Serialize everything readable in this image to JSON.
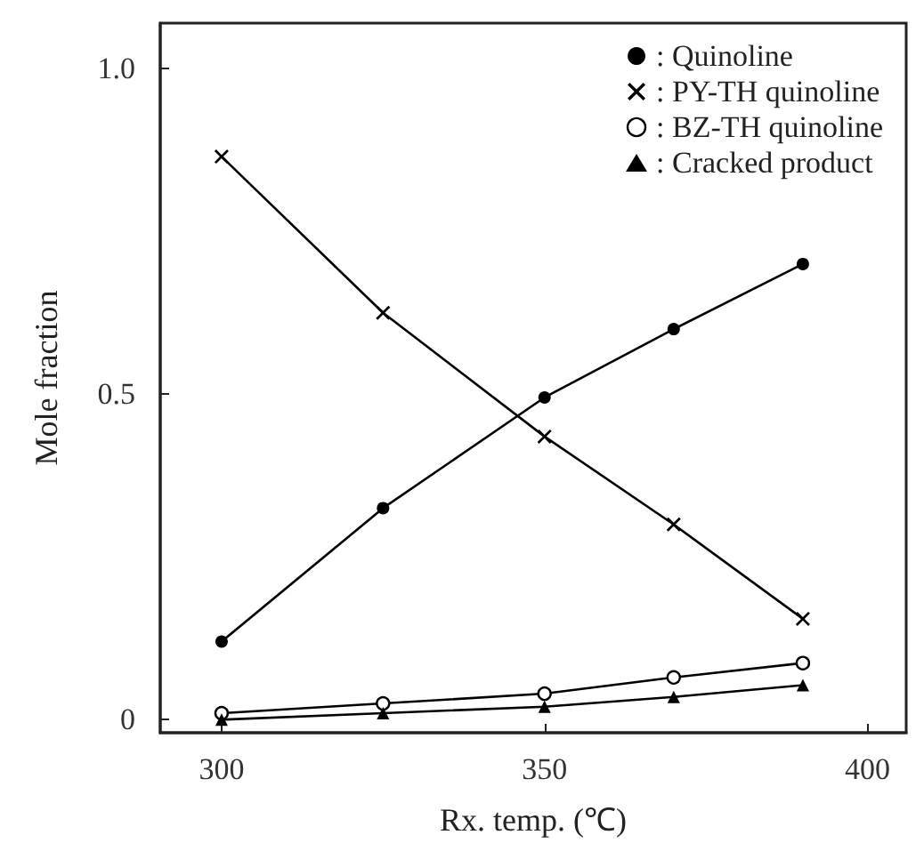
{
  "chart_data": {
    "type": "line",
    "xlabel": "Rx. temp. (℃)",
    "ylabel": "Mole fraction",
    "x": [
      300,
      325,
      350,
      370,
      390
    ],
    "series": [
      {
        "name": ": Quinoline",
        "color": "#000000",
        "marker": "circle",
        "values": [
          0.12,
          0.325,
          0.495,
          0.6,
          0.7
        ]
      },
      {
        "name": ": PY-TH quinoline",
        "color": "#000000",
        "marker": "cross",
        "values": [
          0.865,
          0.625,
          0.435,
          0.3,
          0.155
        ]
      },
      {
        "name": ": BZ-TH quinoline",
        "color": "#000000",
        "marker": "open circle",
        "values": [
          0.01,
          0.025,
          0.04,
          0.065,
          0.087
        ]
      },
      {
        "name": ": Cracked product",
        "color": "#000000",
        "marker": "triangle",
        "values": [
          0.0,
          0.01,
          0.02,
          0.035,
          0.053
        ]
      }
    ],
    "xlim": [
      290.5,
      406
    ],
    "xticks": [
      300,
      350,
      400
    ],
    "ylim": [
      -0.02,
      1.07
    ],
    "yticks": [
      0,
      0.5,
      {
        "value": 1,
        "label": "1.0"
      }
    ],
    "grid": false,
    "legend": "top right",
    "line_style": "solid"
  }
}
